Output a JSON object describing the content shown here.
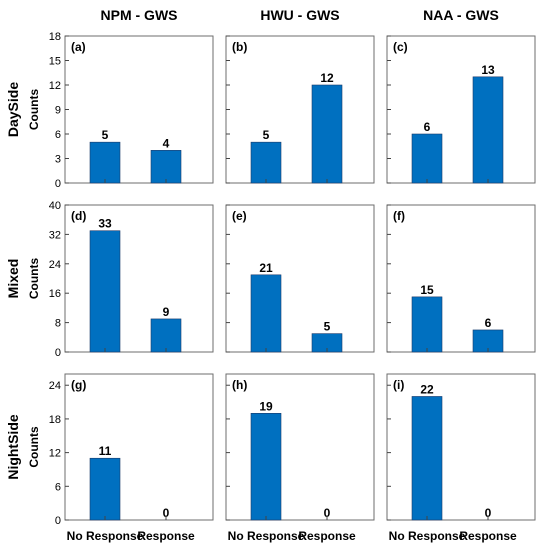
{
  "chart_data": {
    "type": "bar",
    "column_titles": [
      "NPM - GWS",
      "HWU - GWS",
      "NAA - GWS"
    ],
    "row_titles": [
      "DaySide",
      "Mixed",
      "NightSide"
    ],
    "ylabel": "Counts",
    "categories": [
      "No Response",
      "Response"
    ],
    "bar_color": "#0070c0",
    "rows": [
      {
        "name": "DaySide",
        "ylim": [
          0,
          18
        ],
        "yticks": [
          0,
          3,
          6,
          9,
          12,
          15,
          18
        ],
        "panels": [
          {
            "label": "(a)",
            "values": [
              5,
              4
            ]
          },
          {
            "label": "(b)",
            "values": [
              5,
              12
            ]
          },
          {
            "label": "(c)",
            "values": [
              6,
              13
            ]
          }
        ]
      },
      {
        "name": "Mixed",
        "ylim": [
          0,
          40
        ],
        "yticks": [
          0,
          8,
          16,
          24,
          32,
          40
        ],
        "panels": [
          {
            "label": "(d)",
            "values": [
              33,
              9
            ]
          },
          {
            "label": "(e)",
            "values": [
              21,
              5
            ]
          },
          {
            "label": "(f)",
            "values": [
              15,
              6
            ]
          }
        ]
      },
      {
        "name": "NightSide",
        "ylim": [
          0,
          26
        ],
        "yticks": [
          0,
          6,
          12,
          18,
          24
        ],
        "panels": [
          {
            "label": "(g)",
            "values": [
              11,
              0
            ]
          },
          {
            "label": "(h)",
            "values": [
              19,
              0
            ]
          },
          {
            "label": "(i)",
            "values": [
              22,
              0
            ]
          }
        ]
      }
    ]
  }
}
